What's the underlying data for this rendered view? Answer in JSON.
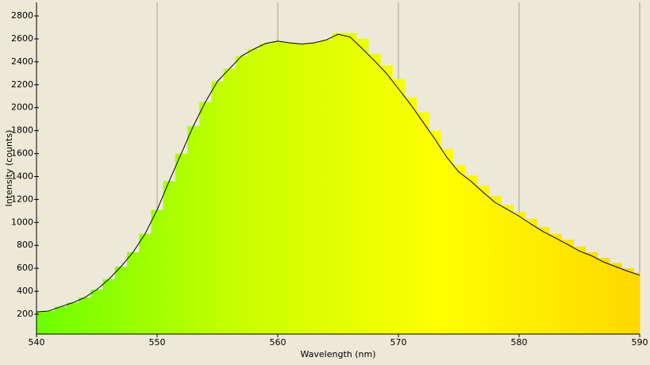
{
  "chart_data": {
    "type": "spectrum",
    "x_label": "Wavelength (nm)",
    "y_label": "Intensity (counts)",
    "x": [
      540,
      541,
      542,
      543,
      544,
      545,
      546,
      547,
      548,
      549,
      550,
      551,
      552,
      553,
      554,
      555,
      556,
      557,
      558,
      559,
      560,
      561,
      562,
      563,
      564,
      565,
      566,
      567,
      568,
      569,
      570,
      571,
      572,
      573,
      574,
      575,
      576,
      577,
      578,
      579,
      580,
      581,
      582,
      583,
      584,
      585,
      586,
      587,
      588,
      589,
      590
    ],
    "series": [
      {
        "color": [
          "#6cff00",
          "#c8ff00",
          "#ffff00",
          "#ffd800"
        ],
        "values": [
          220,
          228,
          265,
          300,
          345,
          415,
          505,
          615,
          740,
          900,
          1110,
          1360,
          1600,
          1840,
          2050,
          2230,
          2340,
          2450,
          2510,
          2560,
          2580,
          2565,
          2555,
          2565,
          2590,
          2650,
          2650,
          2600,
          2470,
          2370,
          2250,
          2090,
          1960,
          1800,
          1640,
          1500,
          1410,
          1320,
          1230,
          1150,
          1090,
          1030,
          960,
          900,
          850,
          790,
          740,
          690,
          645,
          600,
          560
        ]
      },
      {
        "color": "#000000",
        "values": [
          220,
          228,
          265,
          300,
          345,
          415,
          505,
          615,
          740,
          900,
          1110,
          1360,
          1600,
          1840,
          2050,
          2230,
          2340,
          2450,
          2510,
          2560,
          2580,
          2565,
          2555,
          2565,
          2590,
          2640,
          2615,
          2515,
          2410,
          2300,
          2165,
          2030,
          1880,
          1730,
          1570,
          1440,
          1360,
          1265,
          1175,
          1115,
          1055,
          985,
          920,
          865,
          810,
          750,
          710,
          655,
          615,
          575,
          540
        ]
      }
    ],
    "xlim": [
      540,
      590
    ],
    "xticks": [
      540,
      550,
      560,
      570,
      580,
      590
    ],
    "ylim": [
      27,
      2918
    ],
    "yticks": [
      200,
      400,
      600,
      800,
      1000,
      1200,
      1400,
      1600,
      1800,
      2000,
      2200,
      2400,
      2600,
      2800
    ],
    "grid": true
  }
}
